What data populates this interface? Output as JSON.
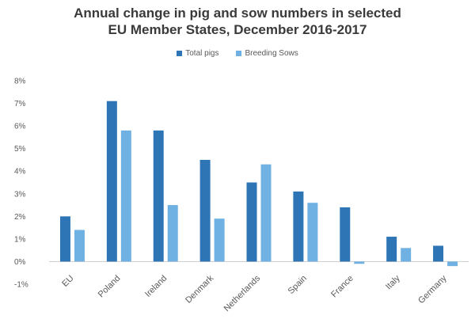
{
  "chart_data": {
    "type": "bar",
    "title_line1": "Annual change in pig and sow numbers in selected",
    "title_line2": "EU Member States, December 2016-2017",
    "categories": [
      "EU",
      "Poland",
      "Ireland",
      "Denmark",
      "Netherlands",
      "Spain",
      "France",
      "Italy",
      "Germany"
    ],
    "series": [
      {
        "name": "Total pigs",
        "color": "#2e75b6",
        "values": [
          2.0,
          7.1,
          5.8,
          4.5,
          3.5,
          3.1,
          2.4,
          1.1,
          0.7
        ]
      },
      {
        "name": "Breeding Sows",
        "color": "#70b1e3",
        "values": [
          1.4,
          5.8,
          2.5,
          1.9,
          4.3,
          2.6,
          -0.1,
          0.6,
          -0.2
        ]
      }
    ],
    "ylim": [
      -1,
      8
    ],
    "yticks": [
      "-1%",
      "0%",
      "1%",
      "2%",
      "3%",
      "4%",
      "5%",
      "6%",
      "7%",
      "8%"
    ],
    "legend_position": "top",
    "grid": false
  }
}
